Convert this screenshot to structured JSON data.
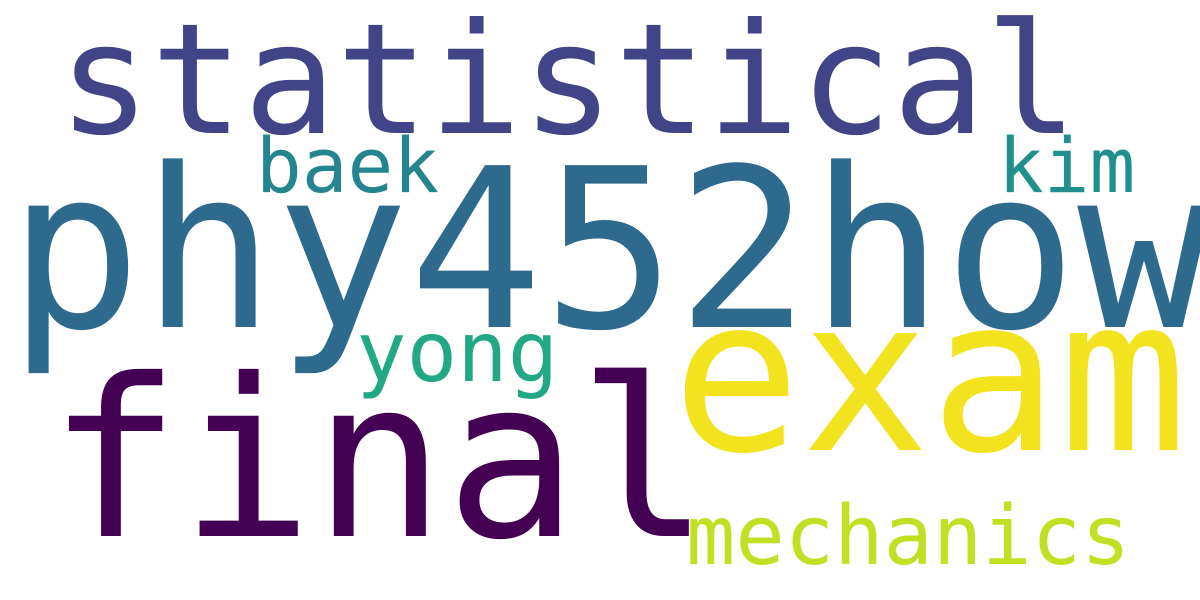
{
  "words": [
    {
      "text": "statistical",
      "color": "#414487"
    },
    {
      "text": "phy452how",
      "color": "#2e6a8e"
    },
    {
      "text": "baek",
      "color": "#25858e"
    },
    {
      "text": "kim",
      "color": "#20908c"
    },
    {
      "text": "yong",
      "color": "#22a884"
    },
    {
      "text": "exam",
      "color": "#f2e31e"
    },
    {
      "text": "final",
      "color": "#440154"
    },
    {
      "text": "mechanics",
      "color": "#c3df24"
    }
  ]
}
